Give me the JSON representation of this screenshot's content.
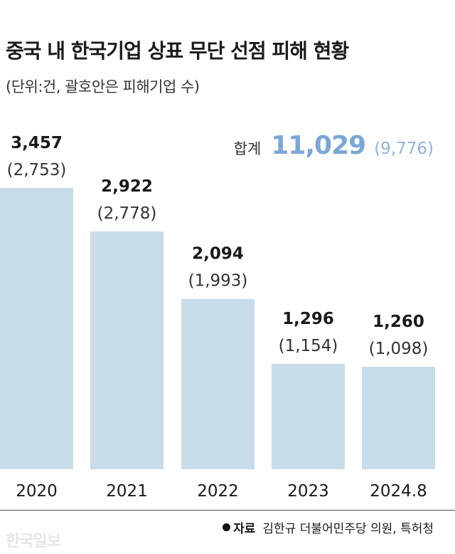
{
  "chart_data": {
    "type": "bar",
    "title": "중국 내 한국기업 상표 무단 선점 피해 현황",
    "subtitle": "(단위:건, 괄호안은 피해기업 수)",
    "categories": [
      "2020",
      "2021",
      "2022",
      "2023",
      "2024.8"
    ],
    "series": [
      {
        "values": [
          3457,
          2922,
          2094,
          1296,
          1260
        ]
      },
      {
        "values": [
          2753,
          2778,
          1993,
          1154,
          1098
        ]
      }
    ],
    "value_labels": [
      "3,457",
      "2,922",
      "2,094",
      "1,296",
      "1,260"
    ],
    "secondary_labels": [
      "(2,753)",
      "(2,778)",
      "(1,993)",
      "(1,154)",
      "(1,098)"
    ],
    "total": {
      "label": "합계",
      "value": "11,029",
      "secondary": "(9,776)"
    },
    "ylim": [
      0,
      3500
    ],
    "grid": false,
    "legend": "none",
    "bar_color": "#c9dcea",
    "accent_color": "#7aa7d6"
  },
  "source": {
    "label": "자료",
    "text": "김한규 더불어민주당 의원, 특허청"
  },
  "watermark": "한국일보"
}
